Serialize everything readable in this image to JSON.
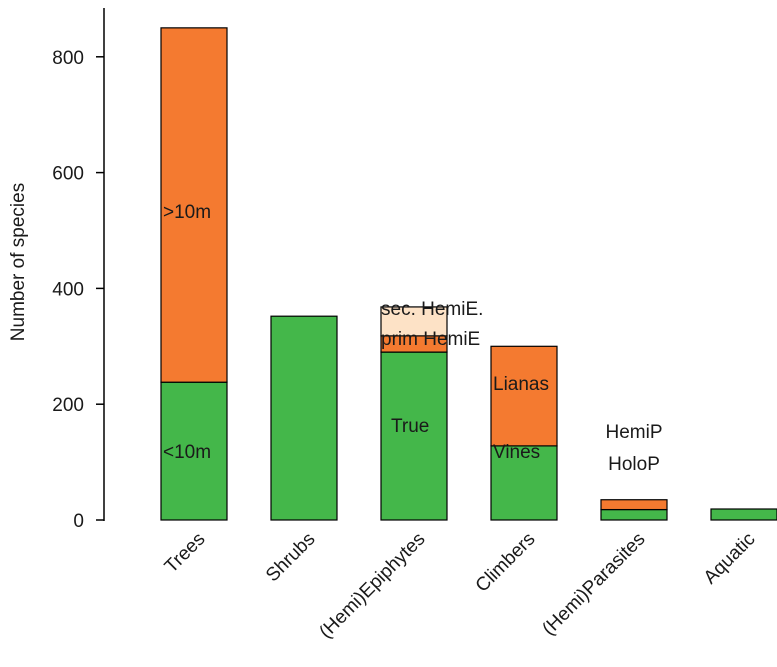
{
  "colors": {
    "green": "#44b74a",
    "orange": "#f47a30",
    "peach": "#fde2c6"
  },
  "chart_data": {
    "type": "bar",
    "stacked": true,
    "ylabel": "Number of species",
    "xlabel": "",
    "ylim": [
      0,
      880
    ],
    "yticks": [
      0,
      200,
      400,
      600,
      800
    ],
    "grid": false,
    "categories": [
      "Trees",
      "Shrubs",
      "(Hemi)Epiphytes",
      "Climbers",
      "(Hemi)Parasites",
      "Aquatic"
    ],
    "stacks": [
      {
        "category": "Trees",
        "segments": [
          {
            "label": "<10m",
            "value": 238,
            "color": "green"
          },
          {
            "label": ">10m",
            "value": 612,
            "color": "orange"
          }
        ]
      },
      {
        "category": "Shrubs",
        "segments": [
          {
            "label": "",
            "value": 352,
            "color": "green"
          }
        ]
      },
      {
        "category": "(Hemi)Epiphytes",
        "segments": [
          {
            "label": "True",
            "value": 290,
            "color": "green"
          },
          {
            "label": "prim HemiE",
            "value": 28,
            "color": "orange"
          },
          {
            "label": "sec. HemiE.",
            "value": 50,
            "color": "peach"
          }
        ]
      },
      {
        "category": "Climbers",
        "segments": [
          {
            "label": "Vines",
            "value": 128,
            "color": "green"
          },
          {
            "label": "Lianas",
            "value": 172,
            "color": "orange"
          }
        ]
      },
      {
        "category": "(Hemi)Parasites",
        "segments": [
          {
            "label": "HoloP",
            "value": 18,
            "color": "green"
          },
          {
            "label": "HemiP",
            "value": 17,
            "color": "orange"
          }
        ]
      },
      {
        "category": "Aquatic",
        "segments": [
          {
            "label": "",
            "value": 19,
            "color": "green"
          }
        ]
      }
    ]
  }
}
